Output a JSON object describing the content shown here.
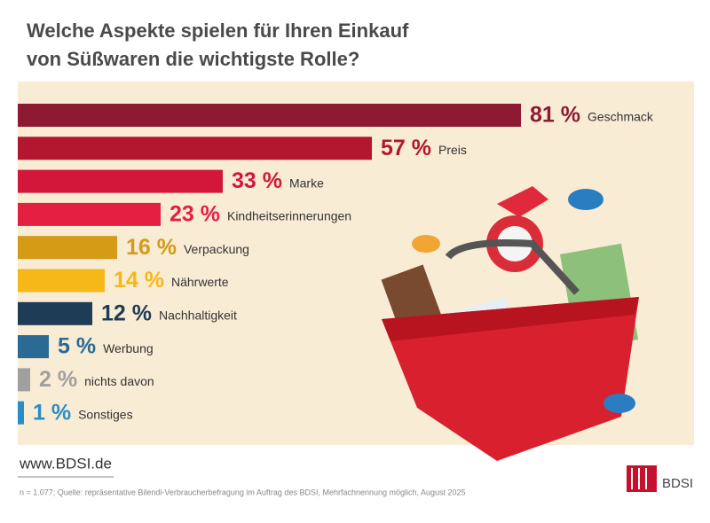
{
  "chart_data": {
    "type": "bar",
    "orientation": "horizontal",
    "title": [
      "Welche Aspekte spielen für Ihren Einkauf",
      "von Süßwaren die wichtigste Rolle?"
    ],
    "categories": [
      "Geschmack",
      "Preis",
      "Marke",
      "Kindheitserinnerungen",
      "Verpackung",
      "Nährwerte",
      "Nachhaltigkeit",
      "Werbung",
      "nichts davon",
      "Sonstiges"
    ],
    "values": [
      81,
      57,
      33,
      23,
      16,
      14,
      12,
      5,
      2,
      1
    ],
    "value_labels": [
      "81 %",
      "57 %",
      "33 %",
      "23 %",
      "16 %",
      "14 %",
      "12 %",
      "5 %",
      "2 %",
      "1 %"
    ],
    "colors": [
      "#8c1a30",
      "#b3172f",
      "#d2173a",
      "#e41f42",
      "#d59a16",
      "#f6b818",
      "#1f3c56",
      "#2b6a94",
      "#a0a0a0",
      "#2a8ec6"
    ],
    "website": "www.BDSI.de",
    "note": "n = 1.077; Quelle: repräsentative Bilendi-Verbraucherbefragung im Auftrag des BDSI, Mehrfachnennung möglich, August 2025",
    "logo": "BDSI"
  }
}
